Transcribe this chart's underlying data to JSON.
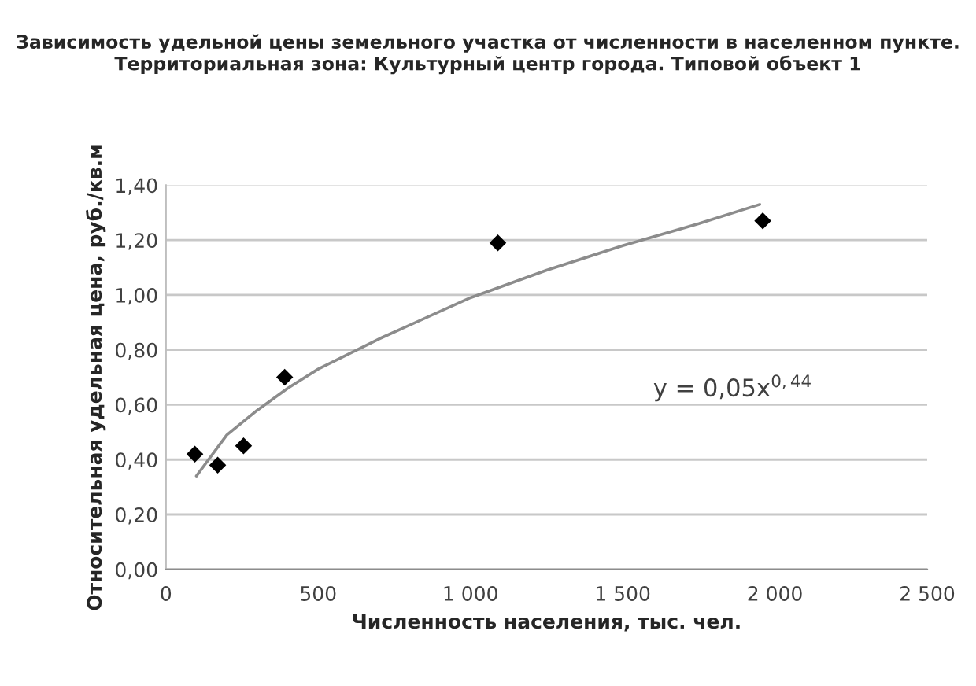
{
  "chart_data": {
    "type": "scatter",
    "title": "Зависимость удельной цены земельного участка от численности в населенном пункте. Территориальная зона: Культурный центр города. Типовой объект 1",
    "xlabel": "Численность населения, тыс. чел.",
    "ylabel": "Относительная удельная цена, руб./кв.м",
    "x": [
      95,
      170,
      255,
      390,
      1090,
      1960
    ],
    "series": [
      {
        "color": "#000000",
        "marker": "diamond",
        "values": [
          0.42,
          0.38,
          0.45,
          0.7,
          1.19,
          1.27
        ]
      },
      {
        "type": "line",
        "color": "#8c8c8c",
        "marker": "none",
        "x": [
          100,
          200,
          300,
          400,
          500,
          700,
          1000,
          1250,
          1500,
          1750,
          1950
        ],
        "values": [
          0.34,
          0.49,
          0.58,
          0.66,
          0.73,
          0.84,
          0.99,
          1.09,
          1.18,
          1.26,
          1.33
        ]
      }
    ],
    "annotations": [
      "y = 0,05x$^{0,44}$"
    ],
    "xlim": [
      0,
      2500
    ],
    "xticks": [
      0,
      500,
      {
        "value": 1000,
        "label": "1 000"
      },
      {
        "value": 1500,
        "label": "1 500"
      },
      {
        "value": 2000,
        "label": "2 000"
      },
      {
        "value": 2500,
        "label": "2 500"
      }
    ],
    "ylim": [
      0,
      1.4
    ],
    "yticks": [
      {
        "value": 0,
        "label": "0,00"
      },
      {
        "value": 0.2,
        "label": "0,20"
      },
      {
        "value": 0.4,
        "label": "0,40"
      },
      {
        "value": 0.6,
        "label": "0,60"
      },
      {
        "value": 0.8,
        "label": "0,80"
      },
      {
        "value": 1.0,
        "label": "1,00"
      },
      {
        "value": 1.2,
        "label": "1,20"
      },
      {
        "value": 1.4,
        "label": "1,40"
      }
    ],
    "grid": "y",
    "legend": false
  }
}
